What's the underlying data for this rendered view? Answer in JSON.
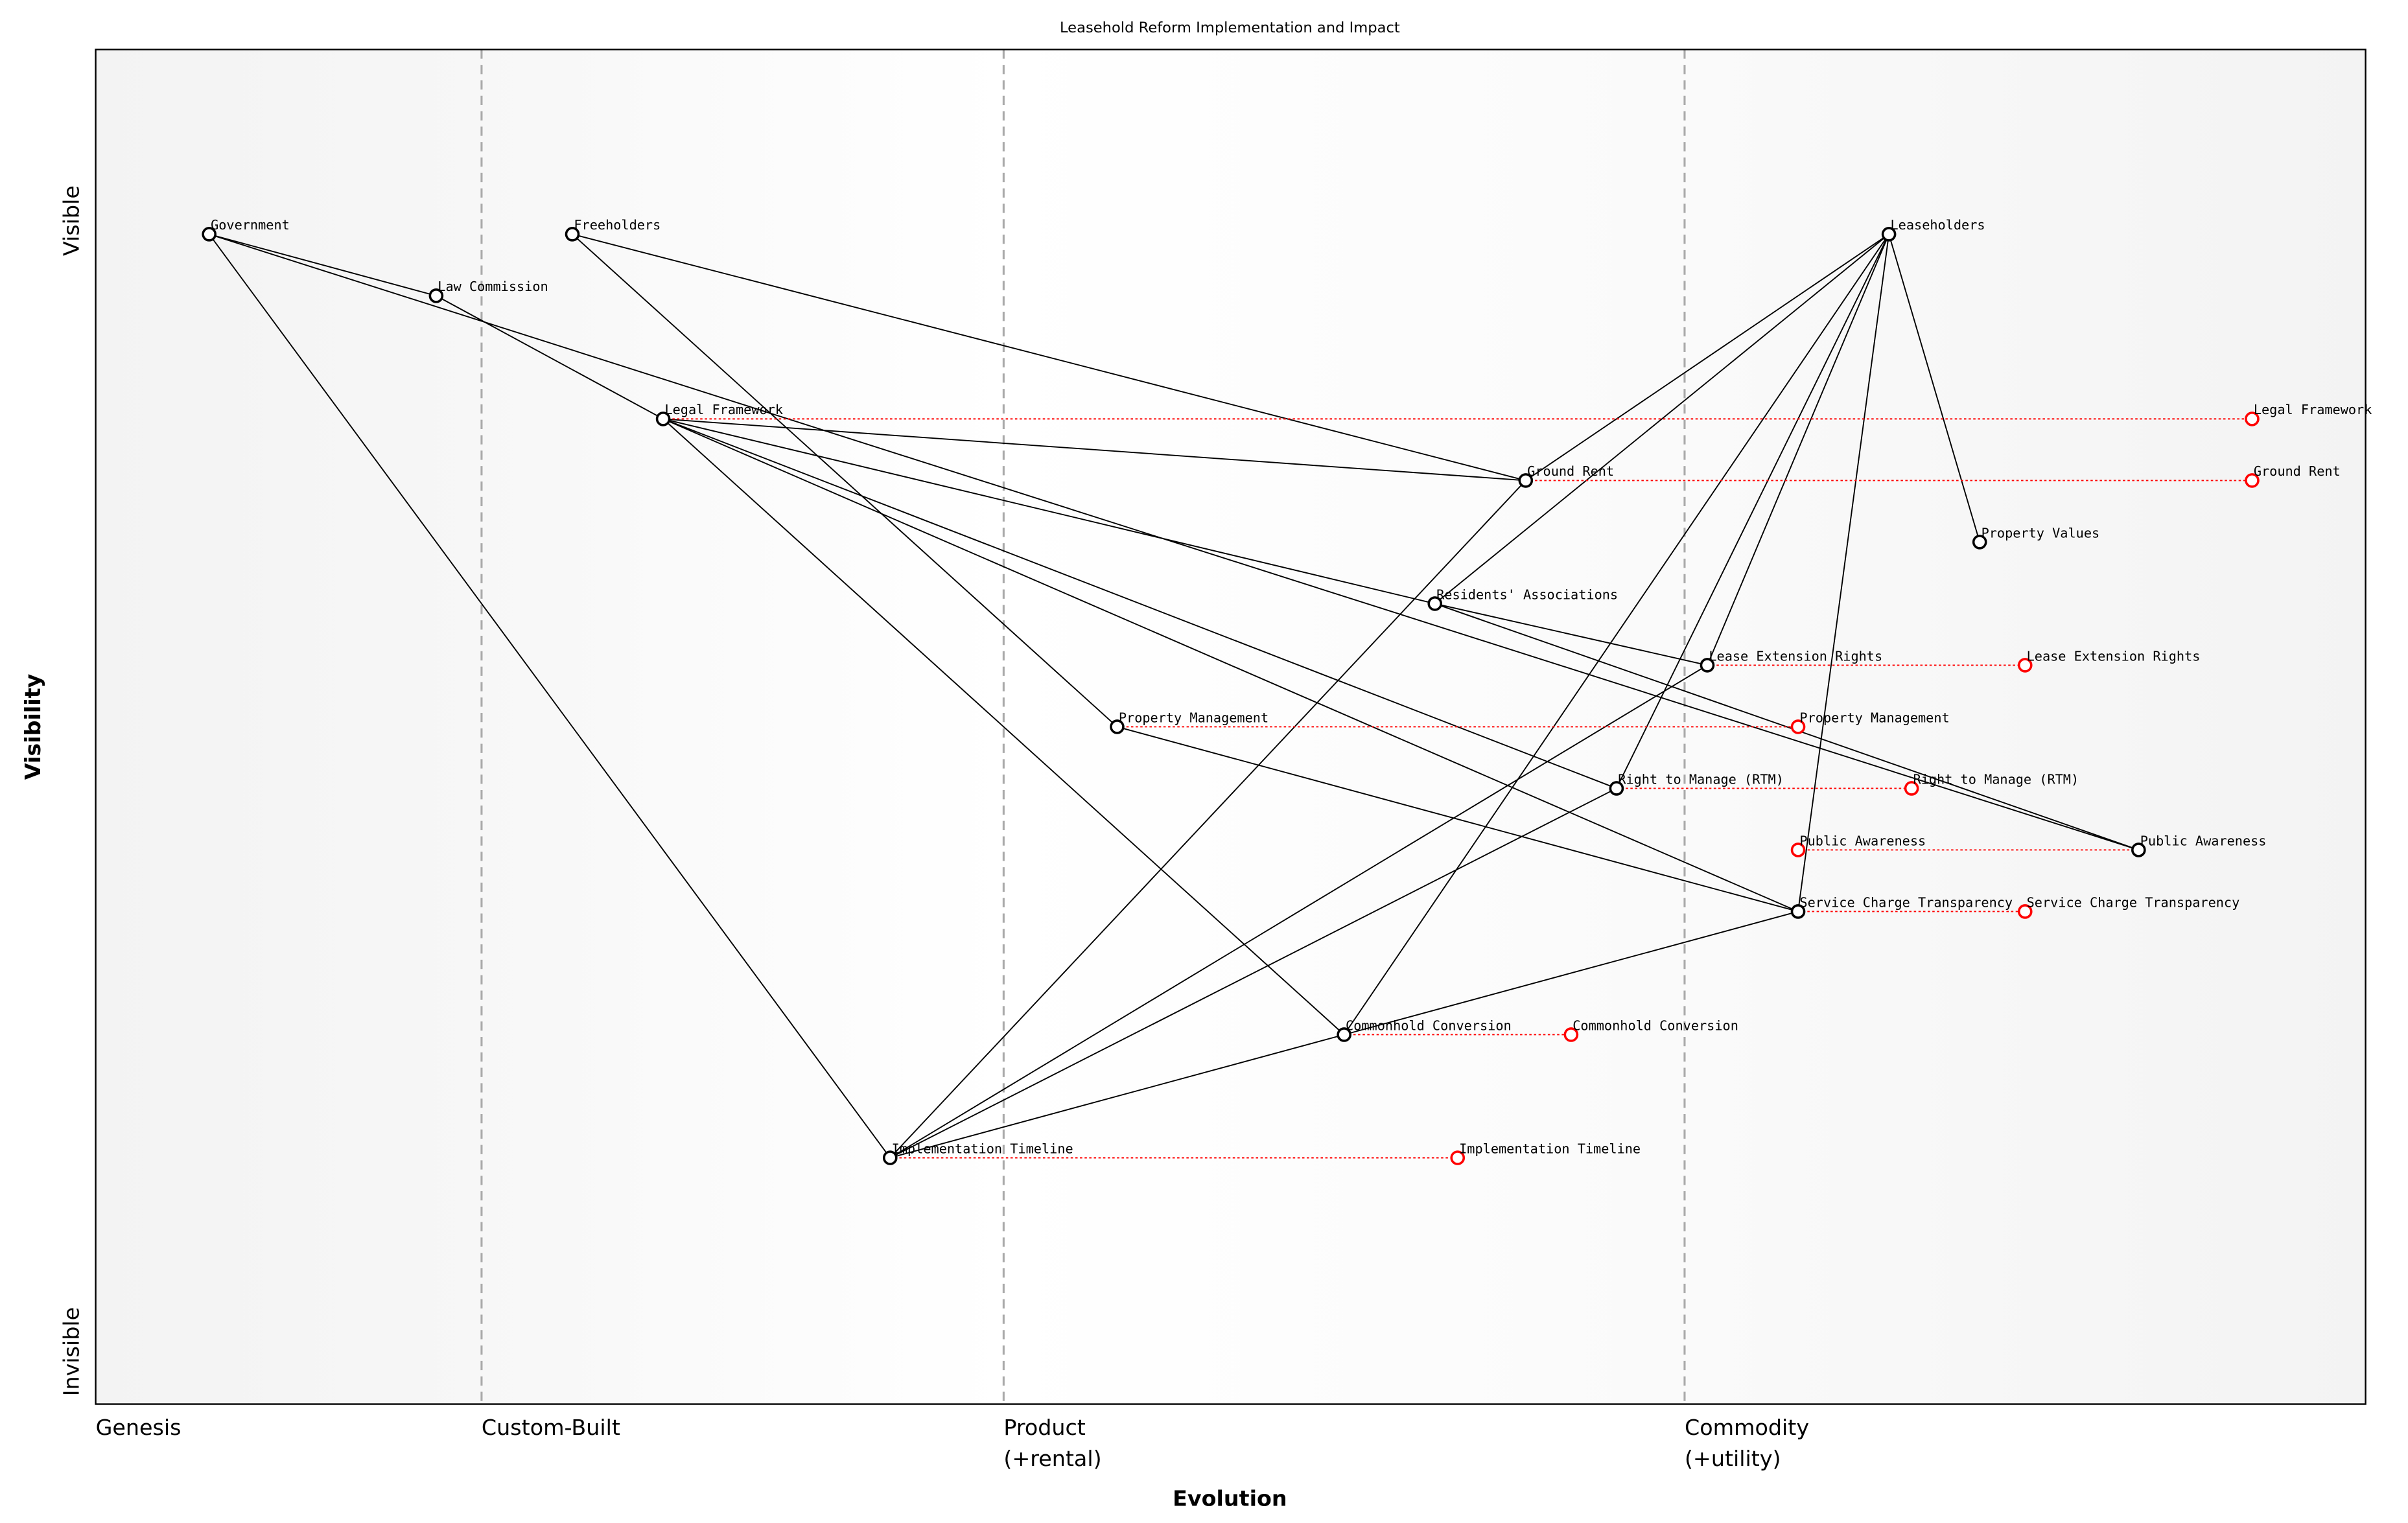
{
  "chart_data": {
    "type": "scatter",
    "subtype": "wardley-map",
    "title": "Leasehold Reform Implementation and Impact",
    "xlabel": "Evolution",
    "ylabel": "Visibility",
    "xlim": [
      0,
      1
    ],
    "ylim": [
      0,
      1.1
    ],
    "grid": false,
    "x_stage_labels": [
      "Genesis",
      "Custom-Built",
      "Product\n(+rental)",
      "Commodity\n(+utility)"
    ],
    "x_stage_positions": [
      0,
      0.17,
      0.4,
      0.7
    ],
    "y_top_label": "Visible",
    "y_bottom_label": "Invisible",
    "colors": {
      "component": "#000000",
      "evolved": "#ff0000",
      "stage_line": "#aaaaaa"
    },
    "components": [
      {
        "name": "Government",
        "x": 0.05,
        "y": 0.95
      },
      {
        "name": "Law Commission",
        "x": 0.15,
        "y": 0.9
      },
      {
        "name": "Freeholders",
        "x": 0.21,
        "y": 0.95
      },
      {
        "name": "Legal Framework",
        "x": 0.25,
        "y": 0.8
      },
      {
        "name": "Implementation Timeline",
        "x": 0.35,
        "y": 0.2
      },
      {
        "name": "Property Management",
        "x": 0.45,
        "y": 0.55
      },
      {
        "name": "Commonhold Conversion",
        "x": 0.55,
        "y": 0.3
      },
      {
        "name": "Residents' Associations",
        "x": 0.59,
        "y": 0.65
      },
      {
        "name": "Ground Rent",
        "x": 0.63,
        "y": 0.75
      },
      {
        "name": "Right to Manage (RTM)",
        "x": 0.67,
        "y": 0.5
      },
      {
        "name": "Lease Extension Rights",
        "x": 0.71,
        "y": 0.6
      },
      {
        "name": "Service Charge Transparency",
        "x": 0.75,
        "y": 0.4
      },
      {
        "name": "Leaseholders",
        "x": 0.79,
        "y": 0.95
      },
      {
        "name": "Property Values",
        "x": 0.83,
        "y": 0.7
      },
      {
        "name": "Public Awareness",
        "x": 0.9,
        "y": 0.45
      }
    ],
    "evolutions": [
      {
        "name": "Legal Framework",
        "to_x": 0.95
      },
      {
        "name": "Ground Rent",
        "to_x": 0.95
      },
      {
        "name": "Lease Extension Rights",
        "to_x": 0.85
      },
      {
        "name": "Property Management",
        "to_x": 0.75
      },
      {
        "name": "Right to Manage (RTM)",
        "to_x": 0.8
      },
      {
        "name": "Public Awareness",
        "to_x": 0.75
      },
      {
        "name": "Service Charge Transparency",
        "to_x": 0.85
      },
      {
        "name": "Commonhold Conversion",
        "to_x": 0.65
      },
      {
        "name": "Implementation Timeline",
        "to_x": 0.6
      }
    ],
    "links": [
      [
        "Government",
        "Law Commission"
      ],
      [
        "Government",
        "Public Awareness"
      ],
      [
        "Government",
        "Implementation Timeline"
      ],
      [
        "Law Commission",
        "Legal Framework"
      ],
      [
        "Freeholders",
        "Ground Rent"
      ],
      [
        "Freeholders",
        "Property Management"
      ],
      [
        "Legal Framework",
        "Ground Rent"
      ],
      [
        "Legal Framework",
        "Residents' Associations"
      ],
      [
        "Legal Framework",
        "Right to Manage (RTM)"
      ],
      [
        "Legal Framework",
        "Service Charge Transparency"
      ],
      [
        "Legal Framework",
        "Commonhold Conversion"
      ],
      [
        "Leaseholders",
        "Ground Rent"
      ],
      [
        "Leaseholders",
        "Residents' Associations"
      ],
      [
        "Leaseholders",
        "Commonhold Conversion"
      ],
      [
        "Leaseholders",
        "Lease Extension Rights"
      ],
      [
        "Leaseholders",
        "Right to Manage (RTM)"
      ],
      [
        "Leaseholders",
        "Service Charge Transparency"
      ],
      [
        "Leaseholders",
        "Property Values"
      ],
      [
        "Implementation Timeline",
        "Ground Rent"
      ],
      [
        "Implementation Timeline",
        "Lease Extension Rights"
      ],
      [
        "Implementation Timeline",
        "Right to Manage (RTM)"
      ],
      [
        "Implementation Timeline",
        "Commonhold Conversion"
      ],
      [
        "Residents' Associations",
        "Lease Extension Rights"
      ],
      [
        "Residents' Associations",
        "Public Awareness"
      ],
      [
        "Property Management",
        "Service Charge Transparency"
      ],
      [
        "Commonhold Conversion",
        "Service Charge Transparency"
      ]
    ]
  }
}
